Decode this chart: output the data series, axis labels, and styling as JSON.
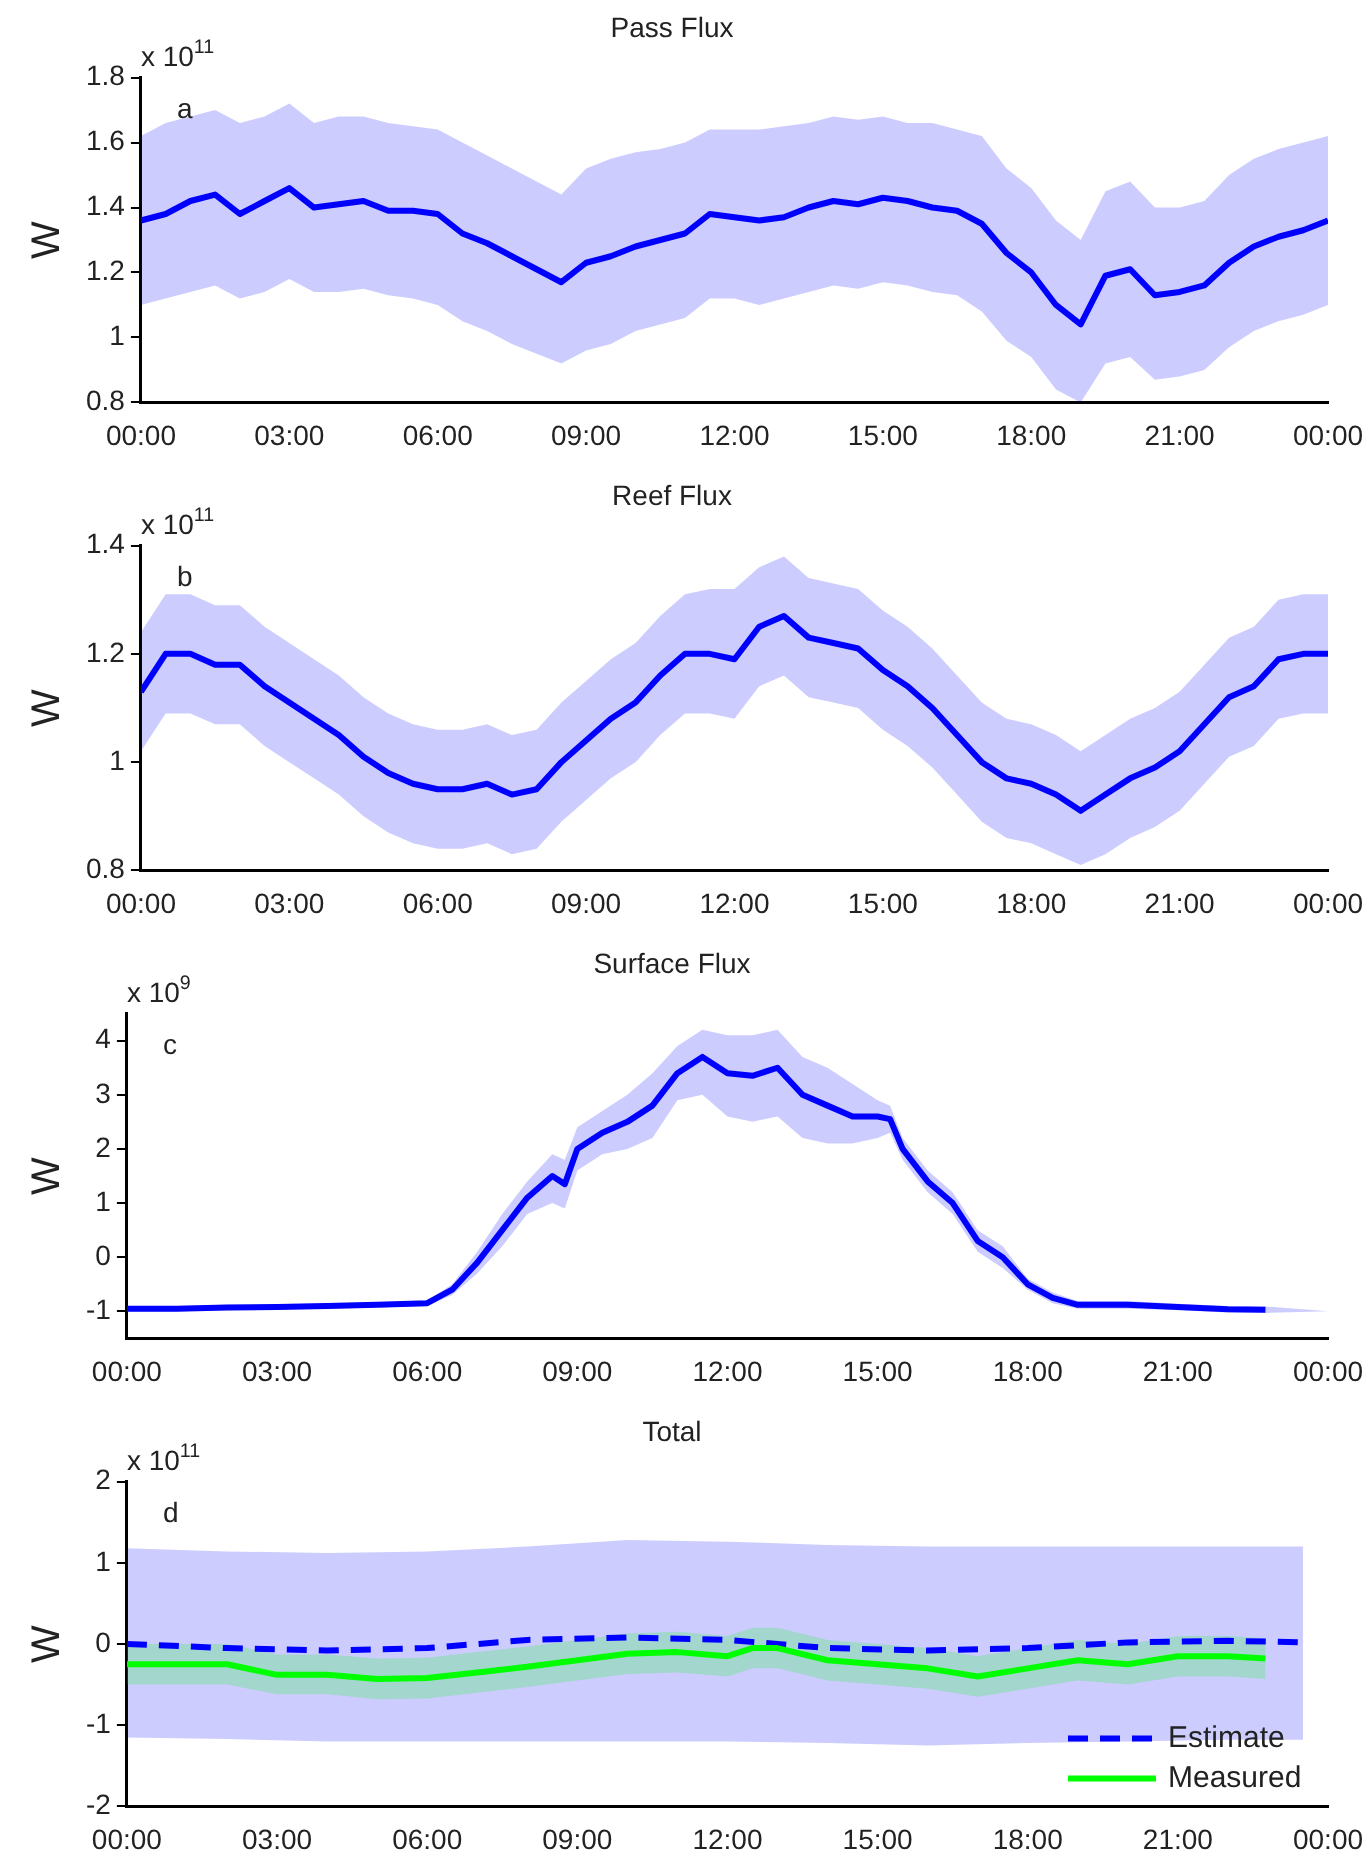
{
  "chart_data": [
    {
      "type": "line",
      "title": "Pass Flux",
      "ylabel": "W",
      "annotations": [
        "x 10$^{11}$",
        "a"
      ],
      "grid": false,
      "legend": false,
      "marker": "none",
      "line_style": "solid",
      "xlim": [
        0,
        24
      ],
      "xticks": [
        {
          "value": 0,
          "label": "00:00"
        },
        {
          "value": 3,
          "label": "03:00"
        },
        {
          "value": 6,
          "label": "06:00"
        },
        {
          "value": 9,
          "label": "09:00"
        },
        {
          "value": 12,
          "label": "12:00"
        },
        {
          "value": 15,
          "label": "15:00"
        },
        {
          "value": 18,
          "label": "18:00"
        },
        {
          "value": 21,
          "label": "21:00"
        },
        {
          "value": 24,
          "label": "00:00"
        }
      ],
      "ylim": [
        0.8,
        1.8
      ],
      "yticks": [
        0.8,
        1,
        1.2,
        1.4,
        1.6,
        1.8
      ],
      "x": [
        0,
        0.5,
        1,
        1.5,
        2,
        2.5,
        3,
        3.5,
        4,
        4.5,
        5,
        5.5,
        6,
        6.5,
        7,
        7.5,
        8,
        8.5,
        9,
        9.5,
        10,
        10.5,
        11,
        11.5,
        12,
        12.5,
        13,
        13.5,
        14,
        14.5,
        15,
        15.5,
        16,
        16.5,
        17,
        17.5,
        18,
        18.5,
        19,
        19.5,
        20,
        20.5,
        21,
        21.5,
        22,
        22.5,
        23,
        23.5,
        24
      ],
      "series": [
        {
          "color": "#0000ff",
          "values": [
            1.36,
            1.38,
            1.42,
            1.44,
            1.38,
            1.42,
            1.46,
            1.4,
            1.41,
            1.42,
            1.39,
            1.39,
            1.38,
            1.32,
            1.29,
            1.25,
            1.21,
            1.17,
            1.23,
            1.25,
            1.28,
            1.3,
            1.32,
            1.38,
            1.37,
            1.36,
            1.37,
            1.4,
            1.42,
            1.41,
            1.43,
            1.42,
            1.4,
            1.39,
            1.35,
            1.26,
            1.2,
            1.1,
            1.04,
            1.19,
            1.21,
            1.13,
            1.14,
            1.16,
            1.23,
            1.28,
            1.31,
            1.33,
            1.36
          ],
          "lower": [
            1.1,
            1.12,
            1.14,
            1.16,
            1.12,
            1.14,
            1.18,
            1.14,
            1.14,
            1.15,
            1.13,
            1.12,
            1.1,
            1.05,
            1.02,
            0.98,
            0.95,
            0.92,
            0.96,
            0.98,
            1.02,
            1.04,
            1.06,
            1.12,
            1.12,
            1.1,
            1.12,
            1.14,
            1.16,
            1.15,
            1.17,
            1.16,
            1.14,
            1.13,
            1.08,
            0.99,
            0.94,
            0.84,
            0.8,
            0.92,
            0.94,
            0.87,
            0.88,
            0.9,
            0.97,
            1.02,
            1.05,
            1.07,
            1.1
          ],
          "upper": [
            1.62,
            1.66,
            1.68,
            1.7,
            1.66,
            1.68,
            1.72,
            1.66,
            1.68,
            1.68,
            1.66,
            1.65,
            1.64,
            1.6,
            1.56,
            1.52,
            1.48,
            1.44,
            1.52,
            1.55,
            1.57,
            1.58,
            1.6,
            1.64,
            1.64,
            1.64,
            1.65,
            1.66,
            1.68,
            1.67,
            1.68,
            1.66,
            1.66,
            1.64,
            1.62,
            1.52,
            1.46,
            1.36,
            1.3,
            1.45,
            1.48,
            1.4,
            1.4,
            1.42,
            1.5,
            1.55,
            1.58,
            1.6,
            1.62
          ]
        }
      ]
    },
    {
      "type": "line",
      "title": "Reef Flux",
      "ylabel": "W",
      "annotations": [
        "x 10$^{11}$",
        "b"
      ],
      "grid": false,
      "legend": false,
      "marker": "none",
      "line_style": "solid",
      "xlim": [
        0,
        24
      ],
      "xticks": [
        {
          "value": 0,
          "label": "00:00"
        },
        {
          "value": 3,
          "label": "03:00"
        },
        {
          "value": 6,
          "label": "06:00"
        },
        {
          "value": 9,
          "label": "09:00"
        },
        {
          "value": 12,
          "label": "12:00"
        },
        {
          "value": 15,
          "label": "15:00"
        },
        {
          "value": 18,
          "label": "18:00"
        },
        {
          "value": 21,
          "label": "21:00"
        },
        {
          "value": 24,
          "label": "00:00"
        }
      ],
      "ylim": [
        0.8,
        1.4
      ],
      "yticks": [
        0.8,
        1,
        1.2,
        1.4
      ],
      "x": [
        0,
        0.5,
        1,
        1.5,
        2,
        2.5,
        3,
        3.5,
        4,
        4.5,
        5,
        5.5,
        6,
        6.5,
        7,
        7.5,
        8,
        8.5,
        9,
        9.5,
        10,
        10.5,
        11,
        11.5,
        12,
        12.5,
        13,
        13.5,
        14,
        14.5,
        15,
        15.5,
        16,
        16.5,
        17,
        17.5,
        18,
        18.5,
        19,
        19.5,
        20,
        20.5,
        21,
        21.5,
        22,
        22.5,
        23,
        23.5,
        24
      ],
      "series": [
        {
          "color": "#0000ff",
          "values": [
            1.13,
            1.2,
            1.2,
            1.18,
            1.18,
            1.14,
            1.11,
            1.08,
            1.05,
            1.01,
            0.98,
            0.96,
            0.95,
            0.95,
            0.96,
            0.94,
            0.95,
            1.0,
            1.04,
            1.08,
            1.11,
            1.16,
            1.2,
            1.2,
            1.19,
            1.25,
            1.27,
            1.23,
            1.22,
            1.21,
            1.17,
            1.14,
            1.1,
            1.05,
            1.0,
            0.97,
            0.96,
            0.94,
            0.91,
            0.94,
            0.97,
            0.99,
            1.02,
            1.07,
            1.12,
            1.14,
            1.19,
            1.2,
            1.2
          ],
          "lower": [
            1.02,
            1.09,
            1.09,
            1.07,
            1.07,
            1.03,
            1.0,
            0.97,
            0.94,
            0.9,
            0.87,
            0.85,
            0.84,
            0.84,
            0.85,
            0.83,
            0.84,
            0.89,
            0.93,
            0.97,
            1.0,
            1.05,
            1.09,
            1.09,
            1.08,
            1.14,
            1.16,
            1.12,
            1.11,
            1.1,
            1.06,
            1.03,
            0.99,
            0.94,
            0.89,
            0.86,
            0.85,
            0.83,
            0.81,
            0.83,
            0.86,
            0.88,
            0.91,
            0.96,
            1.01,
            1.03,
            1.08,
            1.09,
            1.09
          ],
          "upper": [
            1.24,
            1.31,
            1.31,
            1.29,
            1.29,
            1.25,
            1.22,
            1.19,
            1.16,
            1.12,
            1.09,
            1.07,
            1.06,
            1.06,
            1.07,
            1.05,
            1.06,
            1.11,
            1.15,
            1.19,
            1.22,
            1.27,
            1.31,
            1.32,
            1.32,
            1.36,
            1.38,
            1.34,
            1.33,
            1.32,
            1.28,
            1.25,
            1.21,
            1.16,
            1.11,
            1.08,
            1.07,
            1.05,
            1.02,
            1.05,
            1.08,
            1.1,
            1.13,
            1.18,
            1.23,
            1.25,
            1.3,
            1.31,
            1.31
          ]
        }
      ]
    },
    {
      "type": "line",
      "title": "Surface Flux",
      "ylabel": "W",
      "annotations": [
        "x 10$^{9}$",
        "c"
      ],
      "grid": false,
      "legend": false,
      "marker": "none",
      "line_style": "solid",
      "xlim": [
        0,
        24
      ],
      "xticks": [
        {
          "value": 0,
          "label": "00:00"
        },
        {
          "value": 3,
          "label": "03:00"
        },
        {
          "value": 6,
          "label": "06:00"
        },
        {
          "value": 9,
          "label": "09:00"
        },
        {
          "value": 12,
          "label": "12:00"
        },
        {
          "value": 15,
          "label": "15:00"
        },
        {
          "value": 18,
          "label": "18:00"
        },
        {
          "value": 21,
          "label": "21:00"
        },
        {
          "value": 24,
          "label": "00:00"
        }
      ],
      "ylim": [
        -1.5,
        4.5
      ],
      "yticks": [
        -1,
        0,
        1,
        2,
        3,
        4
      ],
      "x": [
        0,
        1,
        2,
        3,
        4,
        5,
        6,
        6.5,
        7,
        7.5,
        8,
        8.5,
        8.75,
        9,
        9.5,
        10,
        10.5,
        11,
        11.5,
        12,
        12.5,
        13,
        13.5,
        14,
        14.5,
        15,
        15.25,
        15.5,
        16,
        16.5,
        17,
        17.5,
        18,
        18.5,
        19,
        20,
        21,
        22,
        22.75,
        24
      ],
      "series": [
        {
          "color": "#0000ff",
          "values": [
            -0.95,
            -0.95,
            -0.93,
            -0.92,
            -0.9,
            -0.88,
            -0.85,
            -0.6,
            -0.1,
            0.5,
            1.1,
            1.5,
            1.35,
            2.0,
            2.3,
            2.5,
            2.8,
            3.4,
            3.7,
            3.4,
            3.35,
            3.5,
            3.0,
            2.8,
            2.6,
            2.6,
            2.55,
            2.0,
            1.4,
            1.0,
            0.3,
            0.0,
            -0.5,
            -0.75,
            -0.88,
            -0.88,
            -0.92,
            -0.96,
            -0.97,
            null
          ],
          "lower": [
            -1.0,
            -1.0,
            -0.98,
            -0.97,
            -0.95,
            -0.93,
            -0.9,
            -0.7,
            -0.3,
            0.2,
            0.8,
            1.0,
            0.9,
            1.6,
            1.9,
            2.0,
            2.2,
            2.9,
            3.0,
            2.6,
            2.5,
            2.6,
            2.2,
            2.1,
            2.1,
            2.2,
            2.3,
            1.8,
            1.2,
            0.8,
            0.1,
            -0.2,
            -0.6,
            -0.85,
            -0.95,
            -0.95,
            -0.98,
            -1.02,
            -1.03,
            -1.0
          ],
          "upper": [
            -0.9,
            -0.9,
            -0.88,
            -0.87,
            -0.85,
            -0.83,
            -0.8,
            -0.5,
            0.1,
            0.8,
            1.4,
            1.9,
            1.8,
            2.4,
            2.7,
            3.0,
            3.4,
            3.9,
            4.2,
            4.1,
            4.1,
            4.2,
            3.7,
            3.5,
            3.2,
            2.9,
            2.8,
            2.2,
            1.6,
            1.2,
            0.5,
            0.2,
            -0.4,
            -0.65,
            -0.81,
            -0.81,
            -0.86,
            -0.9,
            -0.91,
            -1.0
          ]
        }
      ]
    },
    {
      "type": "line",
      "title": "Total",
      "ylabel": "W",
      "annotations": [
        "x 10$^{11}$",
        "d"
      ],
      "grid": false,
      "legend": "bottom right",
      "marker": "none",
      "xlim": [
        0,
        24
      ],
      "xticks": [
        {
          "value": 0,
          "label": "00:00"
        },
        {
          "value": 3,
          "label": "03:00"
        },
        {
          "value": 6,
          "label": "06:00"
        },
        {
          "value": 9,
          "label": "09:00"
        },
        {
          "value": 12,
          "label": "12:00"
        },
        {
          "value": 15,
          "label": "15:00"
        },
        {
          "value": 18,
          "label": "18:00"
        },
        {
          "value": 21,
          "label": "21:00"
        },
        {
          "value": 24,
          "label": "00:00"
        }
      ],
      "ylim": [
        -2,
        2
      ],
      "yticks": [
        -2,
        -1,
        0,
        1,
        2
      ],
      "series": [
        {
          "name": "Estimate",
          "color": "#0000ff",
          "line_style": "dashed",
          "x": [
            0,
            2,
            4,
            6,
            8,
            10,
            12,
            14,
            16,
            18,
            20,
            22,
            23.5
          ],
          "values": [
            0,
            -0.05,
            -0.08,
            -0.05,
            0.05,
            0.08,
            0.05,
            -0.05,
            -0.08,
            -0.05,
            0.02,
            0.04,
            0.02
          ],
          "lower": [
            -1.15,
            -1.17,
            -1.2,
            -1.2,
            -1.2,
            -1.2,
            -1.2,
            -1.22,
            -1.25,
            -1.22,
            -1.2,
            -1.18,
            -1.18
          ],
          "upper": [
            1.18,
            1.14,
            1.12,
            1.14,
            1.2,
            1.28,
            1.26,
            1.22,
            1.2,
            1.2,
            1.2,
            1.2,
            1.2
          ]
        },
        {
          "name": "Measured",
          "color": "#00ff00",
          "line_style": "solid",
          "x": [
            0,
            1,
            2,
            3,
            4,
            5,
            6,
            7,
            8,
            9,
            10,
            11,
            12,
            12.5,
            13,
            14,
            15,
            16,
            17,
            18,
            19,
            20,
            21,
            22,
            22.75
          ],
          "values": [
            -0.25,
            -0.25,
            -0.25,
            -0.38,
            -0.38,
            -0.43,
            -0.42,
            -0.35,
            -0.28,
            -0.2,
            -0.12,
            -0.1,
            -0.15,
            -0.05,
            -0.05,
            -0.2,
            -0.25,
            -0.3,
            -0.4,
            -0.3,
            -0.2,
            -0.25,
            -0.15,
            -0.15,
            -0.18
          ],
          "lower": [
            -0.5,
            -0.5,
            -0.5,
            -0.62,
            -0.62,
            -0.68,
            -0.67,
            -0.6,
            -0.53,
            -0.45,
            -0.37,
            -0.35,
            -0.4,
            -0.3,
            -0.3,
            -0.45,
            -0.5,
            -0.55,
            -0.65,
            -0.55,
            -0.45,
            -0.5,
            -0.4,
            -0.4,
            -0.43
          ],
          "upper": [
            0.0,
            0.0,
            0.0,
            -0.13,
            -0.13,
            -0.18,
            -0.17,
            -0.1,
            -0.03,
            0.05,
            0.13,
            0.15,
            0.1,
            0.2,
            0.2,
            0.05,
            0.0,
            -0.05,
            -0.15,
            -0.05,
            0.05,
            0.0,
            0.1,
            0.1,
            0.07
          ]
        }
      ]
    }
  ]
}
